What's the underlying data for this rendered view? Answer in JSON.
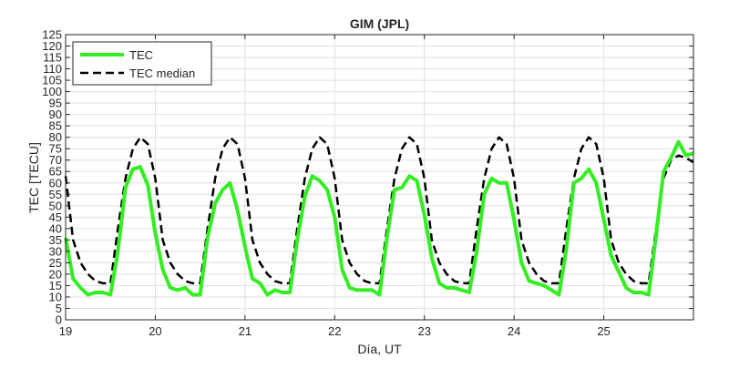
{
  "chart_data": {
    "type": "line",
    "title": "GIM (JPL)",
    "xlabel": "Día, UT",
    "ylabel": "TEC [TECU]",
    "xlim": [
      19,
      26
    ],
    "ylim": [
      0,
      125
    ],
    "xticks": [
      19,
      20,
      21,
      22,
      23,
      24,
      25
    ],
    "yticks": [
      0,
      5,
      10,
      15,
      20,
      25,
      30,
      35,
      40,
      45,
      50,
      55,
      60,
      65,
      70,
      75,
      80,
      85,
      90,
      95,
      100,
      105,
      110,
      115,
      120,
      125
    ],
    "grid": true,
    "legend_position": "top-left",
    "series": [
      {
        "name": "TEC",
        "color": "#33ee22",
        "style": "solid",
        "x": [
          19.0,
          19.083,
          19.167,
          19.25,
          19.333,
          19.417,
          19.5,
          19.583,
          19.667,
          19.75,
          19.833,
          19.917,
          20.0,
          20.083,
          20.167,
          20.25,
          20.333,
          20.417,
          20.5,
          20.583,
          20.667,
          20.75,
          20.833,
          20.917,
          21.0,
          21.083,
          21.167,
          21.25,
          21.333,
          21.417,
          21.5,
          21.583,
          21.667,
          21.75,
          21.833,
          21.917,
          22.0,
          22.083,
          22.167,
          22.25,
          22.333,
          22.417,
          22.5,
          22.583,
          22.667,
          22.75,
          22.833,
          22.917,
          23.0,
          23.083,
          23.167,
          23.25,
          23.333,
          23.417,
          23.5,
          23.583,
          23.667,
          23.75,
          23.833,
          23.917,
          24.0,
          24.083,
          24.167,
          24.25,
          24.333,
          24.417,
          24.5,
          24.583,
          24.667,
          24.75,
          24.833,
          24.917,
          25.0,
          25.083,
          25.167,
          25.25,
          25.333,
          25.417,
          25.5,
          25.583,
          25.667,
          25.75,
          25.833,
          25.917,
          26.0
        ],
        "y": [
          36,
          18,
          14,
          11,
          12,
          12,
          11,
          30,
          58,
          66,
          67,
          59,
          38,
          22,
          14,
          13,
          14,
          11,
          11,
          36,
          51,
          57,
          60,
          48,
          32,
          18,
          16,
          11,
          13,
          12,
          12,
          35,
          54,
          63,
          61,
          57,
          45,
          22,
          14,
          13,
          13,
          13,
          11,
          36,
          57,
          58,
          63,
          61,
          46,
          27,
          16,
          14,
          14,
          13,
          12,
          30,
          55,
          62,
          60,
          60,
          44,
          25,
          17,
          16,
          15,
          13,
          11,
          31,
          60,
          62,
          66,
          60,
          44,
          28,
          21,
          14,
          12,
          12,
          11,
          37,
          65,
          71,
          78,
          72,
          73
        ]
      },
      {
        "name": "TEC median",
        "color": "#000000",
        "style": "dashed",
        "x": [
          19.0,
          19.083,
          19.167,
          19.25,
          19.333,
          19.417,
          19.5,
          19.583,
          19.667,
          19.75,
          19.833,
          19.917,
          20.0,
          20.083,
          20.167,
          20.25,
          20.333,
          20.417,
          20.5,
          20.583,
          20.667,
          20.75,
          20.833,
          20.917,
          21.0,
          21.083,
          21.167,
          21.25,
          21.333,
          21.417,
          21.5,
          21.583,
          21.667,
          21.75,
          21.833,
          21.917,
          22.0,
          22.083,
          22.167,
          22.25,
          22.333,
          22.417,
          22.5,
          22.583,
          22.667,
          22.75,
          22.833,
          22.917,
          23.0,
          23.083,
          23.167,
          23.25,
          23.333,
          23.417,
          23.5,
          23.583,
          23.667,
          23.75,
          23.833,
          23.917,
          24.0,
          24.083,
          24.167,
          24.25,
          24.333,
          24.417,
          24.5,
          24.583,
          24.667,
          24.75,
          24.833,
          24.917,
          25.0,
          25.083,
          25.167,
          25.25,
          25.333,
          25.417,
          25.5,
          25.583,
          25.667,
          25.75,
          25.833,
          25.917,
          26.0
        ],
        "y": [
          63,
          35,
          25,
          20,
          17,
          16,
          16,
          40,
          62,
          75,
          80,
          77,
          62,
          35,
          25,
          20,
          17,
          16,
          16,
          40,
          62,
          75,
          80,
          77,
          62,
          35,
          25,
          20,
          17,
          16,
          16,
          40,
          62,
          75,
          80,
          77,
          62,
          35,
          25,
          20,
          17,
          16,
          16,
          40,
          62,
          75,
          80,
          77,
          62,
          35,
          25,
          20,
          17,
          16,
          16,
          40,
          62,
          75,
          80,
          77,
          62,
          35,
          25,
          20,
          17,
          16,
          16,
          40,
          62,
          75,
          80,
          77,
          62,
          35,
          25,
          20,
          17,
          16,
          16,
          40,
          62,
          70,
          72,
          71,
          69
        ]
      }
    ]
  }
}
